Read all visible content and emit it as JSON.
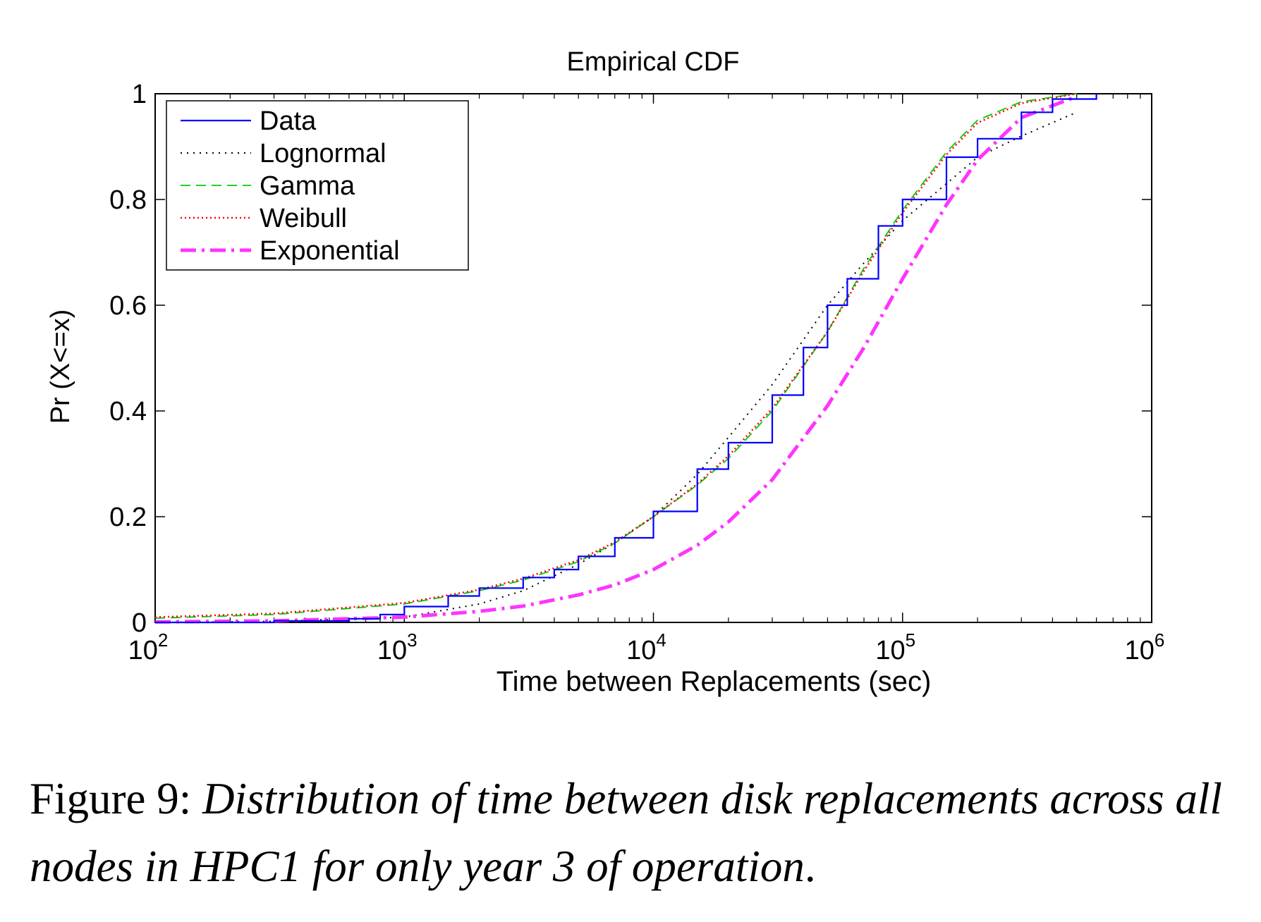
{
  "chart_data": {
    "type": "line",
    "title": "Empirical CDF",
    "xlabel": "Time between Replacements (sec)",
    "ylabel": "Pr (X<=x)",
    "x_scale": "log",
    "xlim": [
      100,
      1000000
    ],
    "ylim": [
      0,
      1
    ],
    "x_ticks": [
      {
        "value": 100,
        "base": "10",
        "exp": "2"
      },
      {
        "value": 1000,
        "base": "10",
        "exp": "3"
      },
      {
        "value": 10000,
        "base": "10",
        "exp": "4"
      },
      {
        "value": 100000,
        "base": "10",
        "exp": "5"
      },
      {
        "value": 1000000,
        "base": "10",
        "exp": "6"
      }
    ],
    "y_ticks": [
      "0",
      "0.2",
      "0.4",
      "0.6",
      "0.8",
      "1"
    ],
    "grid": false,
    "legend_position": "top-left",
    "series": [
      {
        "name": "Data",
        "color": "#0000ff",
        "style": "solid",
        "x": [
          100,
          300,
          600,
          800,
          1000,
          1500,
          2000,
          3000,
          4000,
          5000,
          7000,
          10000,
          15000,
          20000,
          30000,
          40000,
          50000,
          60000,
          80000,
          100000,
          150000,
          200000,
          300000,
          400000,
          600000
        ],
        "y": [
          0.0,
          0.003,
          0.007,
          0.015,
          0.03,
          0.05,
          0.065,
          0.085,
          0.1,
          0.125,
          0.16,
          0.21,
          0.29,
          0.34,
          0.43,
          0.52,
          0.6,
          0.65,
          0.75,
          0.8,
          0.88,
          0.915,
          0.965,
          0.99,
          1.0
        ]
      },
      {
        "name": "Lognormal",
        "color": "#000000",
        "style": "dotted",
        "x": [
          100,
          300,
          1000,
          2000,
          3000,
          5000,
          7000,
          10000,
          15000,
          20000,
          30000,
          50000,
          70000,
          100000,
          150000,
          200000,
          300000,
          500000
        ],
        "y": [
          0.0,
          0.002,
          0.01,
          0.035,
          0.06,
          0.11,
          0.15,
          0.2,
          0.28,
          0.35,
          0.45,
          0.6,
          0.68,
          0.76,
          0.83,
          0.88,
          0.92,
          0.965
        ]
      },
      {
        "name": "Gamma",
        "color": "#00cc00",
        "style": "dashed",
        "x": [
          100,
          300,
          1000,
          2000,
          3000,
          5000,
          7000,
          10000,
          15000,
          20000,
          30000,
          50000,
          70000,
          100000,
          150000,
          200000,
          300000,
          500000
        ],
        "y": [
          0.008,
          0.015,
          0.035,
          0.06,
          0.08,
          0.115,
          0.15,
          0.2,
          0.26,
          0.31,
          0.4,
          0.55,
          0.67,
          0.78,
          0.89,
          0.95,
          0.985,
          1.0
        ]
      },
      {
        "name": "Weibull",
        "color": "#ff0000",
        "style": "dotted-dense",
        "x": [
          100,
          300,
          1000,
          2000,
          3000,
          5000,
          7000,
          10000,
          15000,
          20000,
          30000,
          50000,
          70000,
          100000,
          150000,
          200000,
          300000,
          500000
        ],
        "y": [
          0.01,
          0.017,
          0.037,
          0.062,
          0.083,
          0.118,
          0.152,
          0.2,
          0.262,
          0.315,
          0.405,
          0.55,
          0.665,
          0.775,
          0.885,
          0.945,
          0.982,
          1.0
        ]
      },
      {
        "name": "Exponential",
        "color": "#ff33ff",
        "style": "dash-dot",
        "x": [
          100,
          300,
          1000,
          2000,
          3000,
          5000,
          7000,
          10000,
          15000,
          20000,
          30000,
          50000,
          70000,
          100000,
          150000,
          200000,
          300000,
          500000
        ],
        "y": [
          0.001,
          0.003,
          0.01,
          0.021,
          0.031,
          0.052,
          0.071,
          0.1,
          0.146,
          0.19,
          0.27,
          0.41,
          0.52,
          0.65,
          0.79,
          0.875,
          0.955,
          0.995
        ]
      }
    ]
  },
  "caption": {
    "lead": "Figure 9: ",
    "body": "Distribution of time between disk replacements across all nodes in HPC1 for only year 3 of operation",
    "tail": "."
  }
}
